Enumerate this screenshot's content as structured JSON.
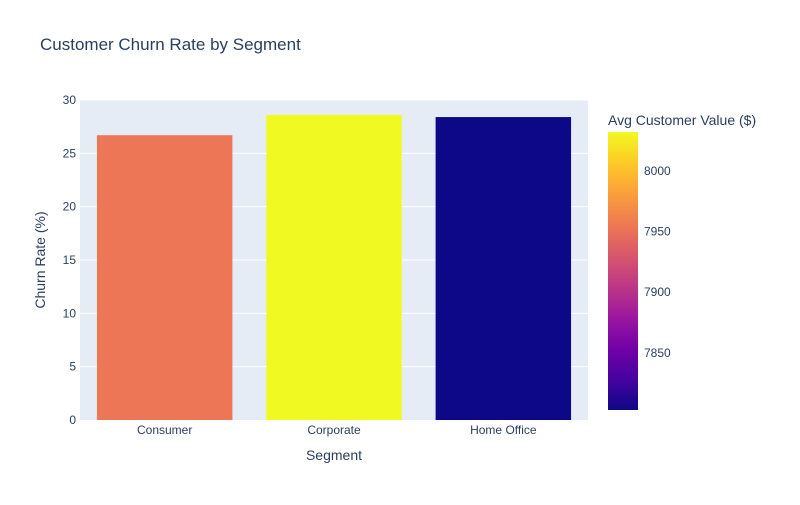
{
  "chart_data": {
    "type": "bar",
    "title": "Customer Churn Rate by Segment",
    "xlabel": "Segment",
    "ylabel": "Churn Rate (%)",
    "categories": [
      "Consumer",
      "Corporate",
      "Home Office"
    ],
    "values": [
      26.7,
      28.6,
      28.4
    ],
    "color_values": [
      7960,
      8032,
      7803
    ],
    "bar_colors": [
      "#ed7656",
      "#f0f921",
      "#0d0887"
    ],
    "ylim": [
      0,
      30
    ],
    "yticks": [
      0,
      5,
      10,
      15,
      20,
      25,
      30
    ],
    "grid": true,
    "colorbar": {
      "title": "Avg Customer Value ($)",
      "range": [
        7803,
        8032
      ],
      "ticks": [
        7850,
        7900,
        7950,
        8000
      ],
      "colorscale": [
        "#0d0887",
        "#46039f",
        "#7201a8",
        "#9c179e",
        "#bd3786",
        "#d8576b",
        "#ed7953",
        "#fb9f3a",
        "#fdca26",
        "#f0f921"
      ]
    },
    "colors": {
      "plot_bg": "#e5ecf6",
      "grid": "#ffffff",
      "text": "#2a3f5f",
      "tick_text": "#2a3f5f"
    }
  }
}
